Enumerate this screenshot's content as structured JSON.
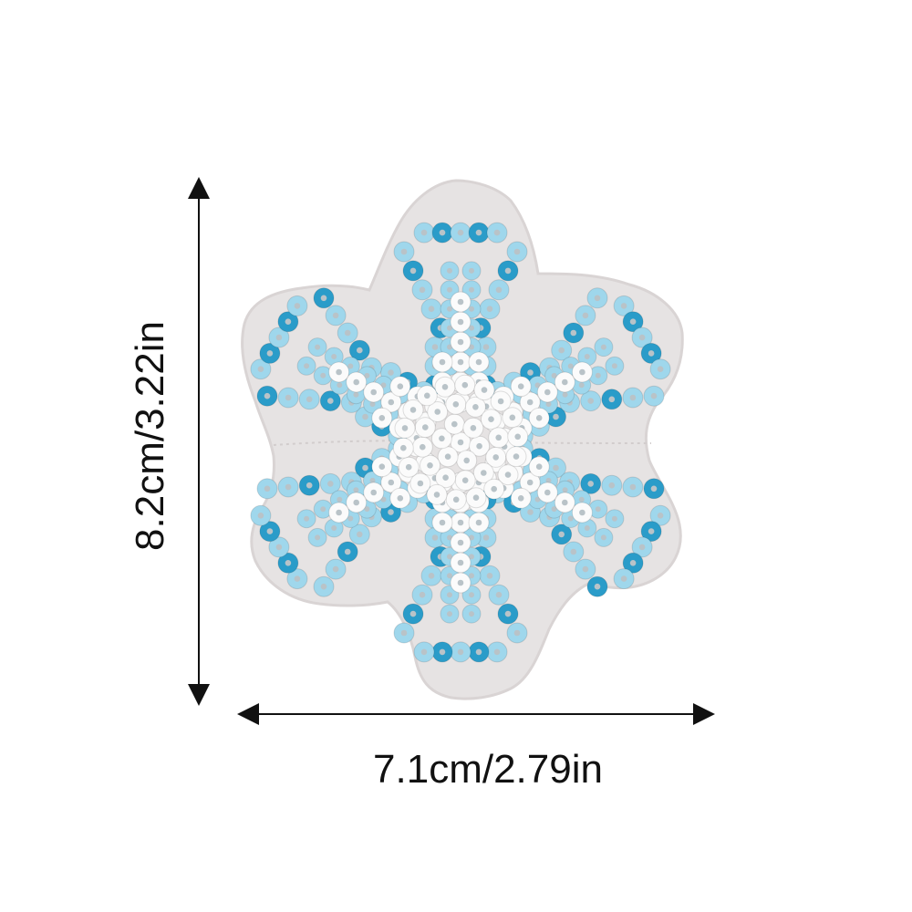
{
  "dimensions": {
    "height_label": "8.2cm/3.22in",
    "width_label": "7.1cm/2.79in"
  },
  "colors": {
    "felt_backing": "#e6e3e3",
    "felt_edge": "#d9d4d4",
    "sequin_light_blue": "#9fd7ec",
    "sequin_deep_blue": "#2a9cc9",
    "sequin_white": "#fbfbfb",
    "sequin_hole": "#b9c3c8",
    "arrow": "#111111"
  },
  "product": {
    "name_icon": "snowflake-sequin-patch"
  }
}
